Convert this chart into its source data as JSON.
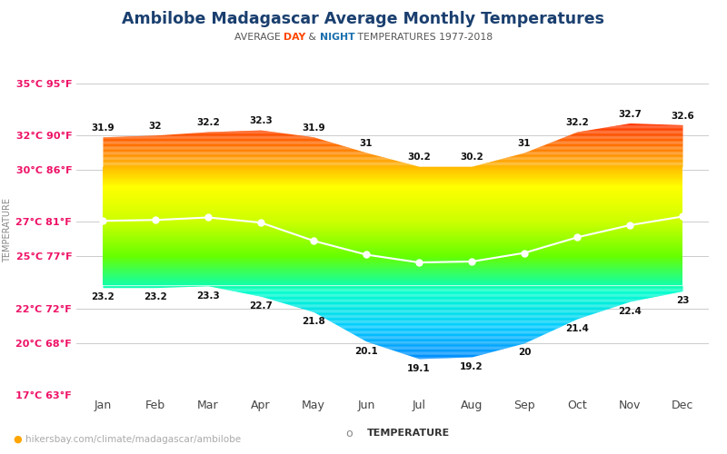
{
  "title": "Ambilobe Madagascar Average Monthly Temperatures",
  "months": [
    "Jan",
    "Feb",
    "Mar",
    "Apr",
    "May",
    "Jun",
    "Jul",
    "Aug",
    "Sep",
    "Oct",
    "Nov",
    "Dec"
  ],
  "day_temps": [
    31.9,
    32.0,
    32.2,
    32.3,
    31.9,
    31.0,
    30.2,
    30.2,
    31.0,
    32.2,
    32.7,
    32.6
  ],
  "night_temps": [
    23.2,
    23.2,
    23.3,
    22.7,
    21.8,
    20.1,
    19.1,
    19.2,
    20.0,
    21.4,
    22.4,
    23.0
  ],
  "mid_line_temps": [
    27.05,
    27.1,
    27.25,
    26.95,
    25.9,
    25.1,
    24.65,
    24.7,
    25.2,
    26.1,
    26.8,
    27.3
  ],
  "ylim_min": 17,
  "ylim_max": 36,
  "yticks_c": [
    17,
    20,
    22,
    25,
    27,
    30,
    32,
    35
  ],
  "ytick_labels": [
    "17°C 63°F",
    "20°C 68°F",
    "22°C 72°F",
    "25°C 77°F",
    "27°C 81°F",
    "30°C 86°F",
    "32°C 90°F",
    "35°C 95°F"
  ],
  "title_color": "#1a3f6f",
  "axis_tick_color": "#ee1166",
  "ylabel": "TEMPERATURE",
  "legend_label": "TEMPERATURE",
  "watermark": "hikersbay.com/climate/madagascar/ambilobe",
  "color_stops_temp": [
    17,
    19,
    21,
    23,
    25,
    27,
    29,
    31,
    33,
    35
  ],
  "color_stops_hex": [
    "#0033ff",
    "#0088ff",
    "#00ccff",
    "#00ffcc",
    "#66ff00",
    "#ccff00",
    "#ffff00",
    "#ff8800",
    "#ff2200",
    "#cc0000"
  ]
}
